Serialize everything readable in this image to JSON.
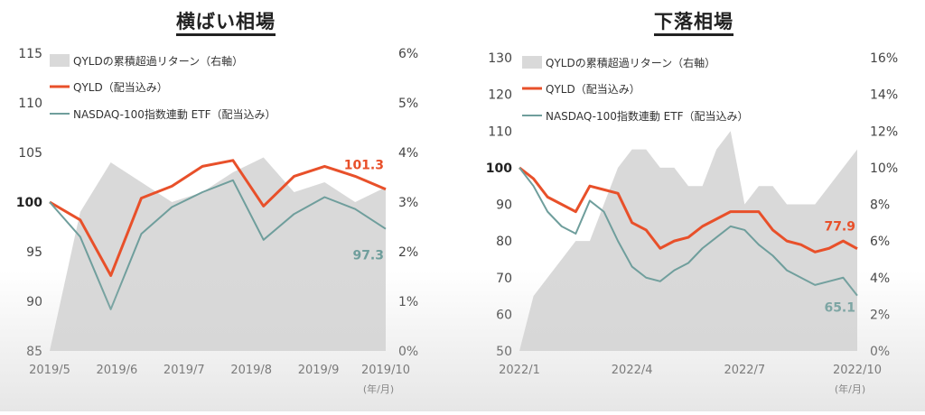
{
  "chart_data": [
    {
      "type": "line",
      "title": "横ばい相場",
      "x_ticks": [
        "2019/5",
        "2019/6",
        "2019/7",
        "2019/8",
        "2019/9",
        "2019/10"
      ],
      "x_unit_label": "(年/月)",
      "y_left": {
        "ticks": [
          "85",
          "90",
          "95",
          "100",
          "105",
          "110",
          "115"
        ],
        "min": 85,
        "max": 115
      },
      "y_right": {
        "ticks": [
          "0%",
          "1%",
          "2%",
          "3%",
          "4%",
          "5%",
          "6%"
        ],
        "min": 0,
        "max": 6
      },
      "legend": [
        "QYLDの累積超過リターン（右軸）",
        "QYLD（配当込み）",
        "NASDAQ-100指数連動 ETF（配当込み）"
      ],
      "end_labels": {
        "qyld": "101.3",
        "nasdaq": "97.3"
      },
      "x": [
        0,
        0.5,
        1,
        1.5,
        2,
        2.5,
        3,
        3.5,
        4,
        4.5,
        5,
        5.5
      ],
      "series": [
        {
          "name": "QYLD（配当込み）",
          "axis": "left",
          "color": "#e8502a",
          "values": [
            100,
            98.2,
            92.6,
            100.4,
            101.6,
            103.6,
            104.2,
            99.6,
            102.6,
            103.6,
            102.6,
            101.3
          ]
        },
        {
          "name": "NASDAQ-100指数連動 ETF（配当込み）",
          "axis": "left",
          "color": "#6f9e9c",
          "values": [
            100,
            96.5,
            89.2,
            96.8,
            99.5,
            101,
            102.2,
            96.2,
            98.8,
            100.5,
            99.3,
            97.3
          ]
        },
        {
          "name": "QYLDの累積超過リターン（右軸）",
          "axis": "right",
          "color": "#d9d9d9",
          "values": [
            0,
            2.8,
            3.8,
            3.4,
            3.0,
            3.2,
            3.6,
            3.9,
            3.2,
            3.4,
            3.0,
            3.3
          ]
        }
      ]
    },
    {
      "type": "line",
      "title": "下落相場",
      "x_ticks": [
        "2022/1",
        "2022/4",
        "2022/7",
        "2022/10"
      ],
      "x_unit_label": "(年/月)",
      "y_left": {
        "ticks": [
          "50",
          "60",
          "70",
          "80",
          "90",
          "100",
          "110",
          "120",
          "130"
        ],
        "min": 50,
        "max": 130
      },
      "y_right": {
        "ticks": [
          "0%",
          "2%",
          "4%",
          "6%",
          "8%",
          "10%",
          "12%",
          "14%",
          "16%"
        ],
        "min": 0,
        "max": 16
      },
      "legend": [
        "QYLDの累積超過リターン（右軸）",
        "QYLD（配当込み）",
        "NASDAQ-100指数連動 ETF（配当込み）"
      ],
      "end_labels": {
        "qyld": "77.9",
        "nasdaq": "65.1"
      },
      "x": [
        0,
        0.5,
        1,
        1.5,
        2,
        2.5,
        3,
        3.5,
        4,
        4.5,
        5,
        5.5,
        6,
        6.5,
        7,
        7.5,
        8,
        8.5,
        9,
        9.5,
        10,
        10.5,
        11,
        11.5,
        12
      ],
      "series": [
        {
          "name": "QYLD（配当込み）",
          "axis": "left",
          "color": "#e8502a",
          "values": [
            100,
            97,
            92,
            90,
            88,
            95,
            94,
            93,
            85,
            83,
            78,
            80,
            81,
            84,
            86,
            88,
            88,
            88,
            83,
            80,
            79,
            77,
            78,
            80,
            77.9
          ]
        },
        {
          "name": "NASDAQ-100指数連動 ETF（配当込み）",
          "axis": "left",
          "color": "#6f9e9c",
          "values": [
            100,
            95,
            88,
            84,
            82,
            91,
            88,
            80,
            73,
            70,
            69,
            72,
            74,
            78,
            81,
            84,
            83,
            79,
            76,
            72,
            70,
            68,
            69,
            70,
            65.1
          ]
        },
        {
          "name": "QYLDの累積超過リターン（右軸）",
          "axis": "right",
          "color": "#d9d9d9",
          "values": [
            0,
            3,
            4,
            5,
            6,
            6,
            8,
            10,
            11,
            11,
            10,
            10,
            9,
            9,
            11,
            12,
            8,
            9,
            9,
            8,
            8,
            8,
            9,
            10,
            11
          ]
        }
      ]
    }
  ]
}
